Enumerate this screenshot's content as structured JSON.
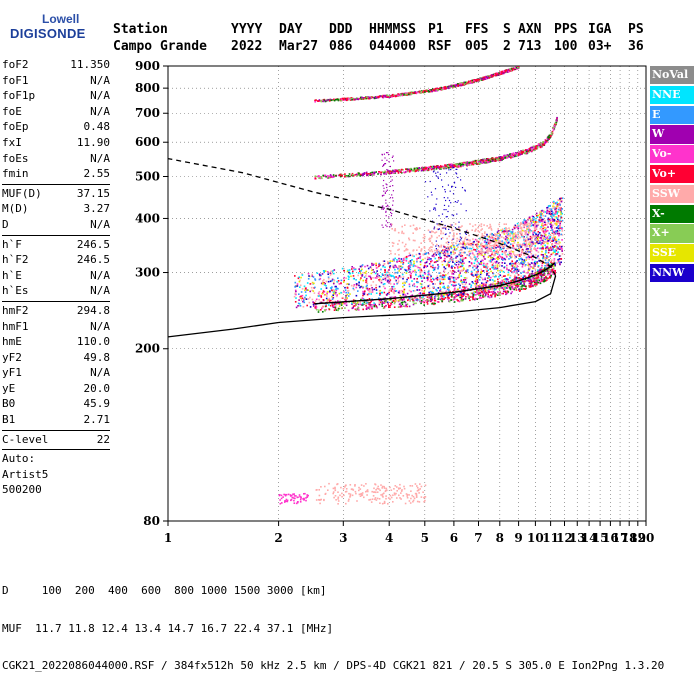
{
  "logo": {
    "brand": "Lowell",
    "product": "DIGISONDE"
  },
  "header": {
    "labels": [
      "Station",
      "YYYY",
      "DAY",
      "DDD",
      "HHMMSS",
      "P1",
      "FFS",
      "S",
      "AXN",
      "PPS",
      "IGA",
      "PS"
    ],
    "values": [
      "Campo Grande",
      "2022",
      "Mar27",
      "086",
      "044000",
      "RSF",
      "005",
      "2",
      "713",
      "100",
      "03+",
      "36"
    ]
  },
  "params": {
    "group1": [
      [
        "foF2",
        "11.350"
      ],
      [
        "foF1",
        "N/A"
      ],
      [
        "foF1p",
        "N/A"
      ],
      [
        "foE",
        "N/A"
      ],
      [
        "foEp",
        "0.48"
      ],
      [
        "fxI",
        "11.90"
      ],
      [
        "foEs",
        "N/A"
      ],
      [
        "fmin",
        "2.55"
      ]
    ],
    "group2": [
      [
        "MUF(D)",
        "37.15"
      ],
      [
        "M(D)",
        "3.27"
      ],
      [
        "D",
        "N/A"
      ]
    ],
    "group3": [
      [
        "h`F",
        "246.5"
      ],
      [
        "h`F2",
        "246.5"
      ],
      [
        "h`E",
        "N/A"
      ],
      [
        "h`Es",
        "N/A"
      ]
    ],
    "group4": [
      [
        "hmF2",
        "294.8"
      ],
      [
        "hmF1",
        "N/A"
      ],
      [
        "hmE",
        "110.0"
      ],
      [
        "yF2",
        "49.8"
      ],
      [
        "yF1",
        "N/A"
      ],
      [
        "yE",
        "20.0"
      ],
      [
        "B0",
        "45.9"
      ],
      [
        "B1",
        "2.71"
      ]
    ],
    "group5": [
      [
        "C-level",
        "22"
      ]
    ],
    "auto": [
      "Auto:",
      "Artist5",
      "500200"
    ]
  },
  "legend": [
    {
      "label": "NoVal",
      "color": "#8c8c8c"
    },
    {
      "label": "NNE",
      "color": "#00e5ff"
    },
    {
      "label": "E",
      "color": "#3399ff"
    },
    {
      "label": "W",
      "color": "#a000b0"
    },
    {
      "label": "Vo-",
      "color": "#ff33cc"
    },
    {
      "label": "Vo+",
      "color": "#ff0033"
    },
    {
      "label": "SSW",
      "color": "#ffaaaa"
    },
    {
      "label": "X-",
      "color": "#007a00"
    },
    {
      "label": "X+",
      "color": "#88cc55"
    },
    {
      "label": "SSE",
      "color": "#e6e600"
    },
    {
      "label": "NNW",
      "color": "#1a00cc"
    }
  ],
  "footer": {
    "line1": "D     100  200  400  600  800 1000 1500 3000 [km]",
    "line2": "MUF  11.7 11.8 12.4 13.4 14.7 16.7 22.4 37.1 [MHz]",
    "line3": "CGK21_2022086044000.RSF / 384fx512h 50 kHz 2.5 km / DPS-4D CGK21 821 / 20.5 S 305.0 E Ion2Png 1.3.20"
  },
  "chart_data": {
    "type": "scatter",
    "title": "",
    "xlabel": "",
    "ylabel": "",
    "xlim": [
      1,
      20
    ],
    "ylim": [
      80,
      900
    ],
    "x_scale": "log",
    "y_scale": "log",
    "x_ticks": [
      "1",
      "2",
      "3",
      "4",
      "5",
      "6",
      "7",
      "8",
      "9",
      "10",
      "11",
      "12",
      "13",
      "14",
      "15",
      "16",
      "17",
      "18",
      "19",
      "20"
    ],
    "y_ticks": [
      "80",
      "200",
      "300",
      "400",
      "500",
      "600",
      "700",
      "800",
      "900"
    ],
    "grid": "dotted",
    "traces": [
      {
        "name": "O-trace F2",
        "x": [
          2.5,
          4,
          6,
          8,
          9,
          10,
          10.5,
          11,
          11.3
        ],
        "y": [
          250,
          257,
          266,
          276,
          283,
          292,
          298,
          306,
          312
        ]
      },
      {
        "name": "2nd hop",
        "x": [
          2.5,
          4,
          6,
          8,
          9.5,
          10.5,
          11,
          11.4
        ],
        "y": [
          500,
          514,
          532,
          553,
          575,
          598,
          628,
          680
        ]
      },
      {
        "name": "3rd hop",
        "x": [
          2.5,
          4,
          5.5,
          7,
          8,
          9
        ],
        "y": [
          750,
          770,
          800,
          840,
          870,
          900
        ]
      }
    ],
    "profile": {
      "name": "electron density profile",
      "x": [
        1,
        1.5,
        2,
        3,
        4,
        6,
        8,
        10,
        11,
        11.35,
        11,
        10,
        8,
        6,
        4,
        2.5,
        1.6,
        1
      ],
      "y": [
        213,
        222,
        230,
        236,
        239,
        243,
        249,
        257,
        268,
        294.8,
        310,
        325,
        350,
        380,
        420,
        460,
        510,
        550
      ]
    }
  }
}
